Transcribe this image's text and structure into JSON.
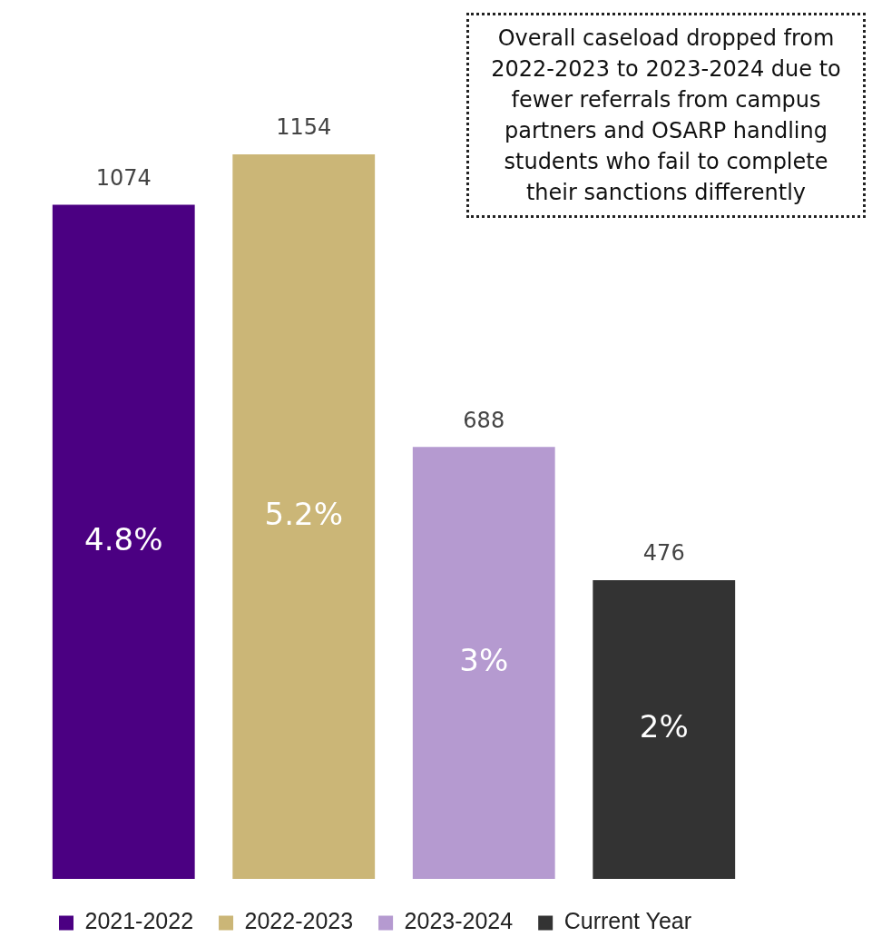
{
  "chart_data": {
    "type": "bar",
    "categories": [
      null,
      null,
      null,
      null
    ],
    "stacked": true,
    "data_labels": true,
    "legend": "bottom",
    "grid": false,
    "series": [
      {
        "name": "2021-2022",
        "color": "#4b0082",
        "values": [
          1074,
          null,
          null,
          null
        ]
      },
      {
        "name": "2022-2023",
        "color": "#cbb677",
        "values": [
          null,
          1154,
          null,
          null
        ]
      },
      {
        "name": "2023-2024",
        "color": "#b59ad0",
        "values": [
          null,
          null,
          688,
          null
        ]
      },
      {
        "name": "Current Year",
        "color": "#333333",
        "values": [
          null,
          null,
          null,
          476
        ]
      }
    ],
    "annotations": [
      "4.8%",
      "5.2%",
      "3%",
      "2%",
      "Overall caseload dropped from 2022-2023 to 2023-2024 due to fewer referrals from campus partners and OSARP handling students who fail to complete their sanctions differently"
    ]
  }
}
